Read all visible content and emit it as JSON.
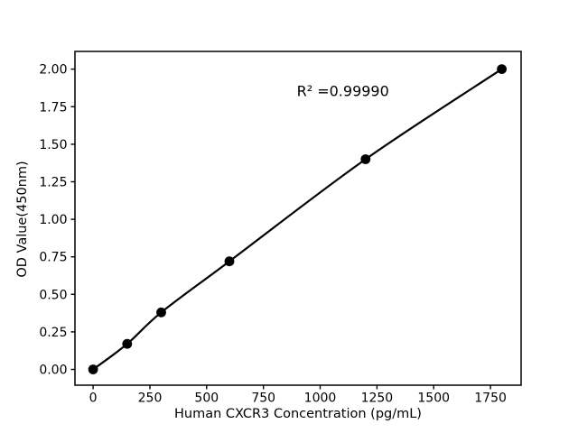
{
  "figure": {
    "background": "#ffffff",
    "foreground": "#000000"
  },
  "chart_data": {
    "type": "line",
    "series": [
      {
        "name": "standard-curve",
        "x": [
          0,
          150,
          300,
          600,
          1200,
          1800
        ],
        "y": [
          0.0,
          0.17,
          0.38,
          0.72,
          1.4,
          2.0
        ]
      }
    ],
    "title": "",
    "xlabel": "Human CXCR3 Concentration (pg/mL)",
    "ylabel": "OD Value(450nm)",
    "xlim": [
      -80,
      1885
    ],
    "ylim": [
      -0.105,
      2.118
    ],
    "x_tick_values": [
      0,
      250,
      500,
      750,
      1000,
      1250,
      1500,
      1750
    ],
    "x_tick_labels": [
      "0",
      "250",
      "500",
      "750",
      "1000",
      "1250",
      "1500",
      "1750"
    ],
    "y_tick_values": [
      0.0,
      0.25,
      0.5,
      0.75,
      1.0,
      1.25,
      1.5,
      1.75,
      2.0
    ],
    "y_tick_labels": [
      "0.00",
      "0.25",
      "0.50",
      "0.75",
      "1.00",
      "1.25",
      "1.50",
      "1.75",
      "2.00"
    ],
    "annotation": {
      "text": "R² =0.99990",
      "x": 1100,
      "y": 1.852
    },
    "grid": false,
    "legend": "none",
    "line_color": "#000000",
    "marker": "circle",
    "marker_color": "#000000",
    "axis_color": "#000000"
  }
}
